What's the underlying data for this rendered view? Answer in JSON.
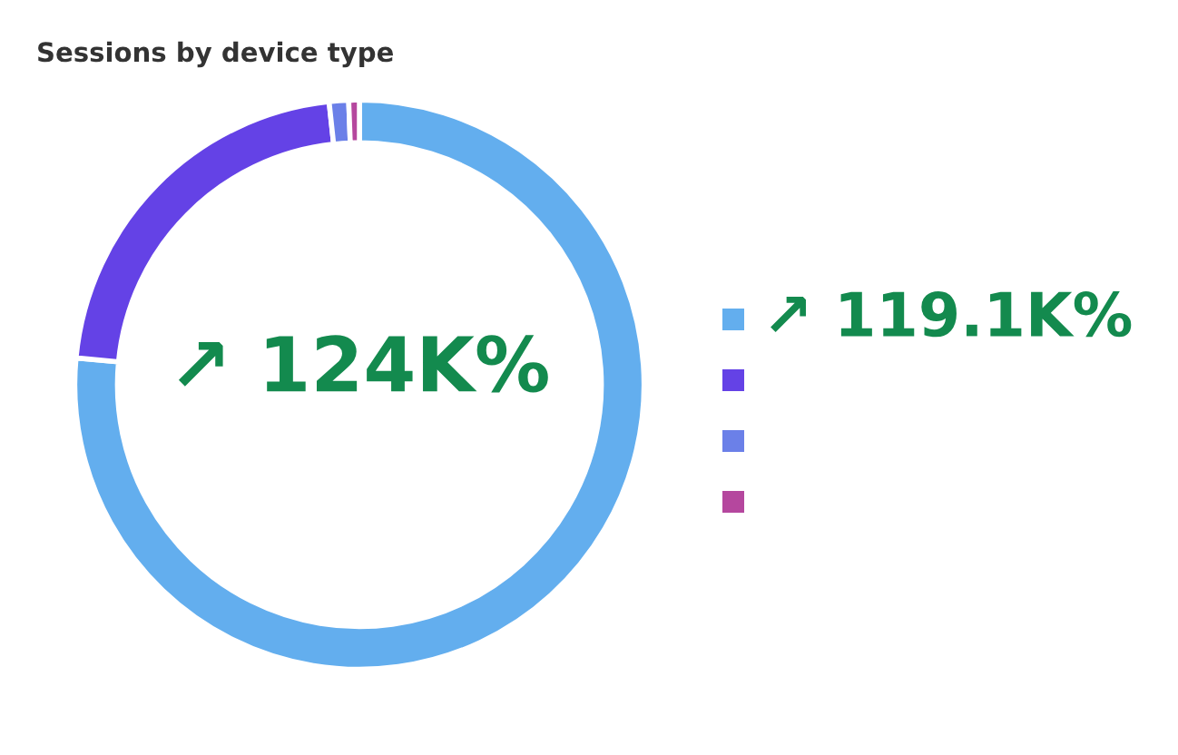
{
  "chart_data": {
    "type": "donut",
    "title": "Sessions by device type",
    "categories": [
      null,
      null,
      null,
      null
    ],
    "values": [
      76.5,
      21.8,
      1.1,
      0.6
    ],
    "colors": [
      "#63aeee",
      "#6442e6",
      "#6b80e8",
      "#b5479e"
    ],
    "annotations": [
      "↗ 124K%",
      "↗ 119.1K%"
    ]
  }
}
